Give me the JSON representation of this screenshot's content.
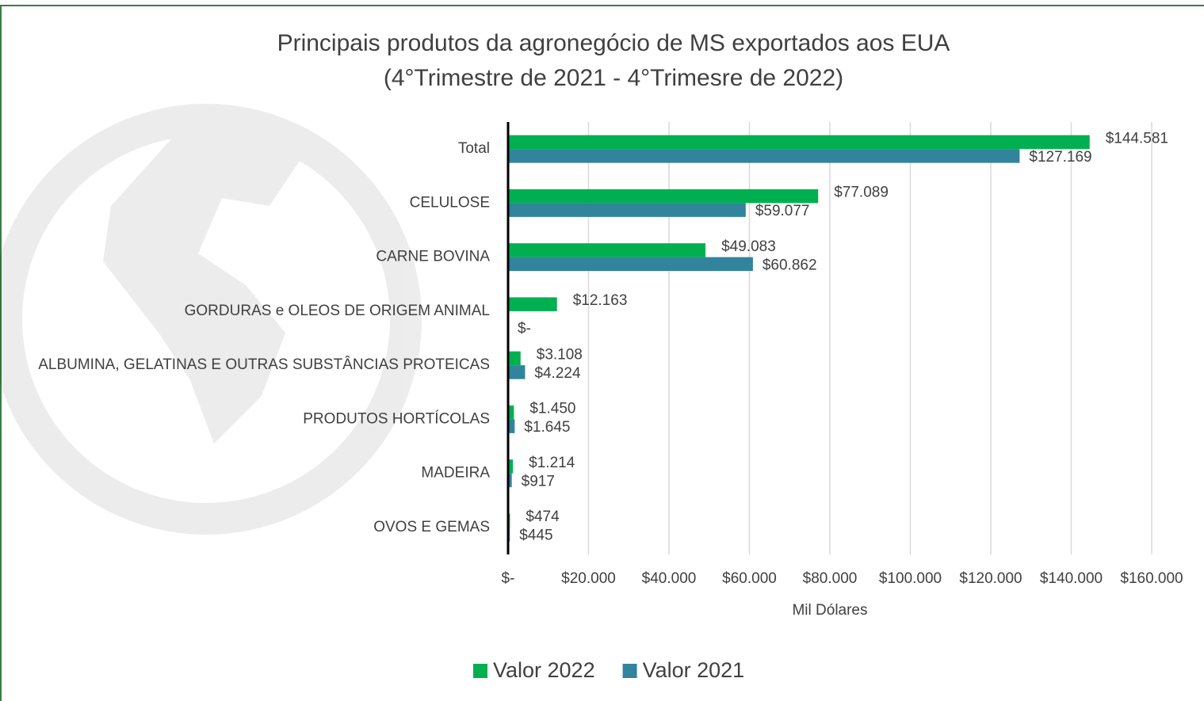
{
  "chart_data": {
    "type": "bar",
    "orientation": "horizontal",
    "title": "Principais produtos da agronegócio de MS exportados  aos EUA",
    "subtitle": "(4°Trimestre de 2021 - 4°Trimesre de 2022)",
    "x_label": "Mil Dólares",
    "categories": [
      "Total",
      "CELULOSE",
      "CARNE BOVINA",
      "GORDURAS e OLEOS DE ORIGEM ANIMAL",
      "ALBUMINA, GELATINAS E OUTRAS SUBSTÂNCIAS PROTEICAS",
      "PRODUTOS HORTÍCOLAS",
      "MADEIRA",
      "OVOS E GEMAS"
    ],
    "series": [
      {
        "name": "Valor 2022",
        "color": "#00b050",
        "values": [
          144581,
          77089,
          49083,
          12163,
          3108,
          1450,
          1214,
          474
        ],
        "value_labels": [
          "$144.581",
          "$77.089",
          "$49.083",
          "$12.163",
          "$3.108",
          "$1.450",
          "$1.214",
          "$474"
        ]
      },
      {
        "name": "Valor 2021",
        "color": "#31849b",
        "values": [
          127169,
          59077,
          60862,
          0,
          4224,
          1645,
          917,
          445
        ],
        "value_labels": [
          "$127.169",
          "$59.077",
          "$60.862",
          "$-",
          "$4.224",
          "$1.645",
          "$917",
          "$445"
        ]
      }
    ],
    "xlim": [
      0,
      160000
    ],
    "xticks": [
      {
        "value": 0,
        "label": "$-"
      },
      {
        "value": 20000,
        "label": "$20.000"
      },
      {
        "value": 40000,
        "label": "$40.000"
      },
      {
        "value": 60000,
        "label": "$60.000"
      },
      {
        "value": 80000,
        "label": "$80.000"
      },
      {
        "value": 100000,
        "label": "$100.000"
      },
      {
        "value": 120000,
        "label": "$120.000"
      },
      {
        "value": 140000,
        "label": "$140.000"
      },
      {
        "value": 160000,
        "label": "$160.000"
      }
    ],
    "grid": true,
    "legend": "bottom"
  }
}
